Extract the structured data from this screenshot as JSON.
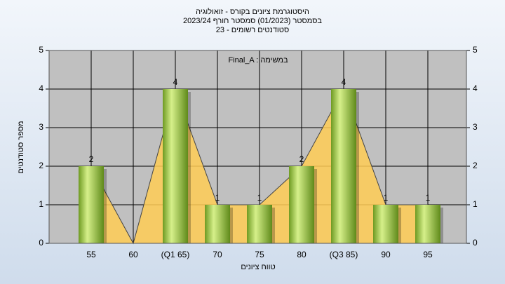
{
  "chart_data": {
    "type": "bar",
    "title": "היסטוגרמת ציונים בקורס - זואולוגיה",
    "subtitle": "בסמסטר  (01/2023)  סמסטר חורף 2023/24",
    "subtitle2": "סטודנטים רשומים - 23",
    "annotation": "Final_A : במשימה",
    "x_label": "טווח ציונים",
    "y_label": "מספר סטודנטים",
    "categories": [
      "55",
      "60",
      "(Q1 65)",
      "70",
      "75",
      "80",
      "(Q3 85)",
      "90",
      "95"
    ],
    "values": [
      2,
      0,
      4,
      1,
      1,
      2,
      4,
      1,
      1
    ],
    "color": "#8fbf3a",
    "area_color": "#ffcc55",
    "ylim": [
      0,
      5
    ],
    "yticks": [
      0,
      1,
      2,
      3,
      4,
      5
    ],
    "grid": true
  }
}
